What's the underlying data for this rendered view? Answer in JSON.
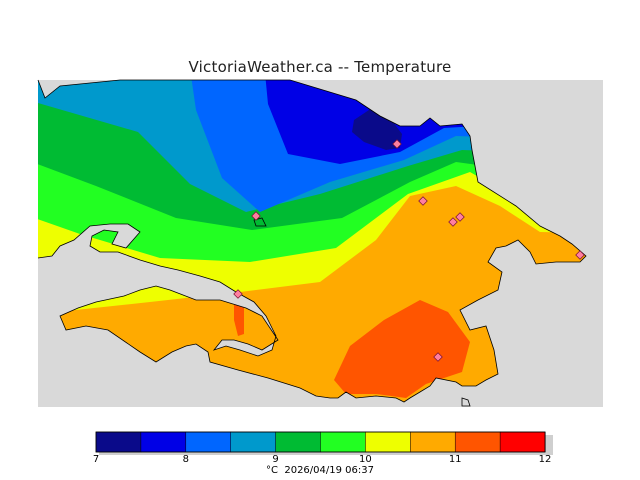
{
  "header": {
    "title": "VictoriaWeather.ca -- Temperature"
  },
  "legend": {
    "colors": [
      "#0a0a8a",
      "#0000e6",
      "#0066ff",
      "#0099cc",
      "#00bb33",
      "#22ff22",
      "#eeff00",
      "#ffaa00",
      "#ff5500",
      "#ff0000"
    ],
    "tick_labels": [
      "7",
      "8",
      "9",
      "10",
      "11",
      "12"
    ],
    "unit": "°C",
    "timestamp": "2026/04/19 06:37"
  },
  "colors": {
    "land_background": "#d9d9d9",
    "coast_outline": "#000000",
    "station_marker": "#ff7fa0"
  }
}
